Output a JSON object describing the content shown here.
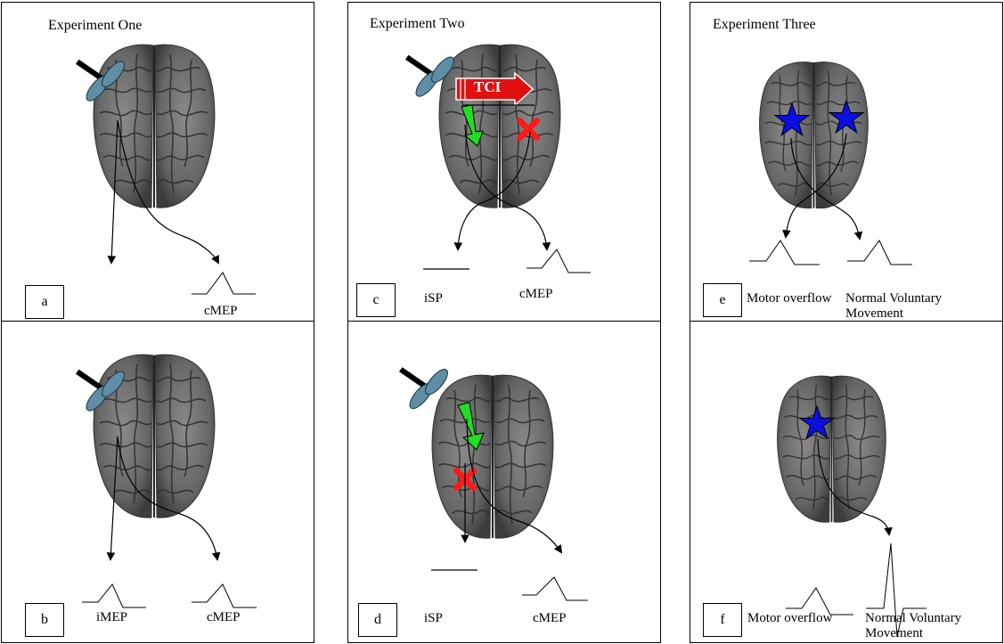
{
  "columns": [
    {
      "title": "Experiment One"
    },
    {
      "title": "Experiment Two"
    },
    {
      "title": "Experiment Three"
    }
  ],
  "panels": {
    "a": {
      "letter": "a",
      "labels": [
        "cMEP"
      ]
    },
    "b": {
      "letter": "b",
      "labels": [
        "iMEP",
        "cMEP"
      ]
    },
    "c": {
      "letter": "c",
      "labels": [
        "iSP",
        "cMEP"
      ],
      "arrow_text": "TCI"
    },
    "d": {
      "letter": "d",
      "labels": [
        "iSP",
        "cMEP"
      ]
    },
    "e": {
      "letter": "e",
      "labels": [
        "Motor overflow",
        "Normal Voluntary Movement"
      ]
    },
    "f": {
      "letter": "f",
      "labels": [
        "Motor overflow",
        "Normal Voluntary Movement"
      ]
    }
  },
  "colors": {
    "coil": "#5f8ea6",
    "handle": "#000000",
    "tci_arrow": "#e01010",
    "green_arrow": "#22dd22",
    "red_cross": "#ff1a1a",
    "star": "#0a10e0",
    "brain_dark": "#3e3e3e",
    "brain_light": "#7a7a7a"
  },
  "icons": [
    "tms-coil-icon",
    "brain-icon",
    "tci-arrow-icon",
    "green-arrow-icon",
    "red-cross-icon",
    "blue-star-icon"
  ]
}
